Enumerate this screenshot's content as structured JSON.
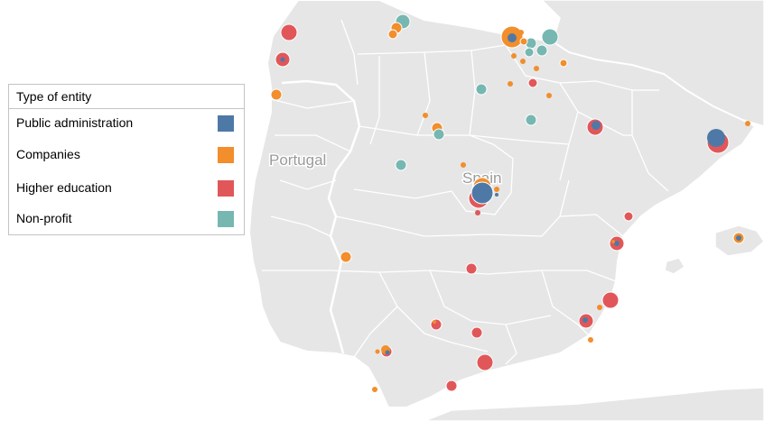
{
  "map": {
    "labels": {
      "portugal": "Portugal",
      "spain": "Spain"
    }
  },
  "legend": {
    "title": "Type of entity",
    "items": [
      {
        "label": "Public administration",
        "color": "#4e79a7"
      },
      {
        "label": "Companies",
        "color": "#f28e2b"
      },
      {
        "label": "Higher education",
        "color": "#e15759"
      },
      {
        "label": "Non-profit",
        "color": "#76b7b2"
      }
    ]
  },
  "colors": {
    "land": "#e6e6e6",
    "border": "#ffffff",
    "Public administration": "#4e79a7",
    "Companies": "#f28e2b",
    "Higher education": "#e15759",
    "Non-profit": "#76b7b2"
  }
}
